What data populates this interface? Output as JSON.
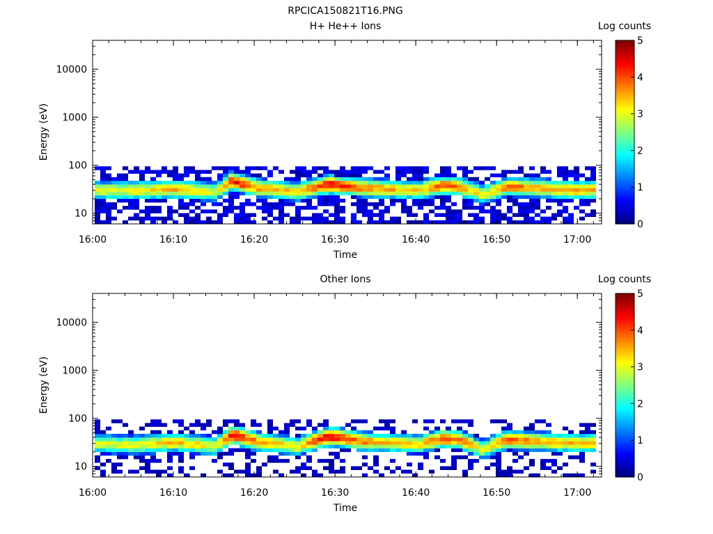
{
  "figure_title": "RPCICA150821T16.PNG",
  "chart_data": [
    {
      "type": "heatmap",
      "title": "H+ He++ Ions",
      "xlabel": "Time",
      "ylabel": "Energy (eV)",
      "x_range": [
        "16:00",
        "17:03"
      ],
      "x_ticks": [
        "16:00",
        "16:10",
        "16:20",
        "16:30",
        "16:40",
        "16:50",
        "17:00"
      ],
      "y_scale": "log",
      "y_range": [
        6,
        40000
      ],
      "y_ticks": [
        "10",
        "100",
        "1000",
        "10000"
      ],
      "colorbar": {
        "label": "Log counts",
        "range": [
          0,
          5
        ],
        "ticks": [
          "0",
          "1",
          "2",
          "3",
          "4",
          "5"
        ]
      },
      "band": {
        "description_values": "peak log counts along time",
        "times": [
          "16:00",
          "16:05",
          "16:10",
          "16:15",
          "16:17",
          "16:18",
          "16:20",
          "16:25",
          "16:29",
          "16:30",
          "16:33",
          "16:35",
          "16:40",
          "16:43",
          "16:45",
          "16:48",
          "16:51",
          "16:55",
          "17:00",
          "17:02"
        ],
        "peak_log_counts": [
          3.0,
          3.2,
          3.5,
          3.0,
          4.3,
          4.2,
          3.6,
          3.3,
          4.4,
          4.2,
          3.8,
          3.6,
          3.3,
          4.0,
          3.8,
          3.0,
          3.9,
          3.6,
          3.5,
          3.6
        ],
        "peak_energy_eV": [
          30,
          30,
          32,
          28,
          48,
          42,
          34,
          28,
          40,
          38,
          34,
          33,
          30,
          38,
          36,
          24,
          36,
          33,
          30,
          32
        ],
        "energy_extent_eV": [
          6,
          95
        ]
      }
    },
    {
      "type": "heatmap",
      "title": "Other Ions",
      "xlabel": "Time",
      "ylabel": "Energy (eV)",
      "x_range": [
        "16:00",
        "17:03"
      ],
      "x_ticks": [
        "16:00",
        "16:10",
        "16:20",
        "16:30",
        "16:40",
        "16:50",
        "17:00"
      ],
      "y_scale": "log",
      "y_range": [
        6,
        40000
      ],
      "y_ticks": [
        "10",
        "100",
        "1000",
        "10000"
      ],
      "colorbar": {
        "label": "Log counts",
        "range": [
          0,
          5
        ],
        "ticks": [
          "0",
          "1",
          "2",
          "3",
          "4",
          "5"
        ]
      },
      "band": {
        "description_values": "peak log counts along time",
        "times": [
          "16:00",
          "16:05",
          "16:10",
          "16:15",
          "16:17",
          "16:18",
          "16:20",
          "16:25",
          "16:29",
          "16:30",
          "16:33",
          "16:35",
          "16:40",
          "16:43",
          "16:45",
          "16:48",
          "16:51",
          "16:55",
          "17:00",
          "17:02"
        ],
        "peak_log_counts": [
          3.0,
          3.0,
          3.5,
          3.0,
          4.6,
          4.3,
          3.6,
          3.2,
          4.6,
          4.4,
          3.8,
          3.5,
          3.3,
          4.1,
          3.9,
          3.0,
          4.0,
          3.6,
          3.4,
          3.6
        ],
        "peak_energy_eV": [
          30,
          28,
          32,
          26,
          45,
          42,
          33,
          26,
          42,
          40,
          33,
          32,
          29,
          38,
          36,
          22,
          36,
          33,
          30,
          32
        ],
        "energy_extent_eV": [
          6,
          95
        ]
      }
    }
  ]
}
